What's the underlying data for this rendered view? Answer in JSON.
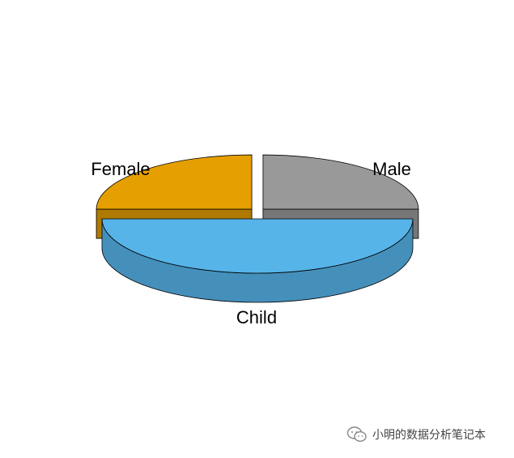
{
  "chart_data": {
    "type": "pie",
    "style": "3d-exploded",
    "title": "",
    "slices": [
      {
        "label": "Female",
        "value": 25,
        "color": "#E69F00",
        "side_color": "#B07900"
      },
      {
        "label": "Male",
        "value": 25,
        "color": "#999999",
        "side_color": "#777777"
      },
      {
        "label": "Child",
        "value": 50,
        "color": "#56B4E9",
        "side_color": "#4590BB"
      }
    ]
  },
  "watermark": {
    "text": "小明的数据分析笔记本",
    "icon": "wechat-icon"
  }
}
